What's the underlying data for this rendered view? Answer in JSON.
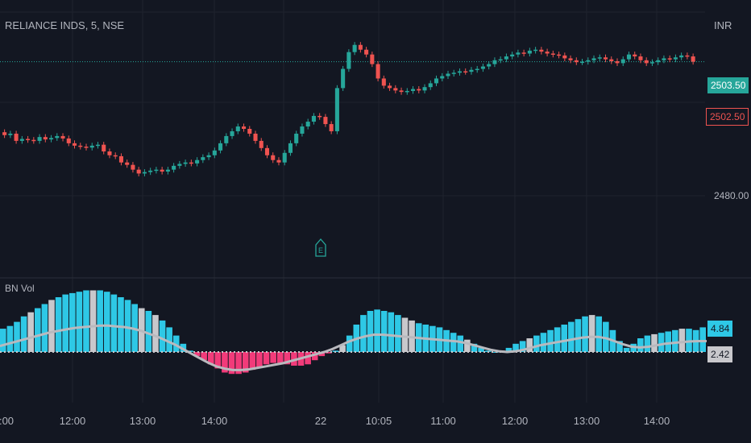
{
  "header": {
    "title": "RELIANCE INDS, 5, NSE",
    "currency": "INR"
  },
  "indicator": {
    "name": "BN Vol"
  },
  "colors": {
    "background": "#131722",
    "up": "#26a69a",
    "down": "#ef5350",
    "vol_up": "#2ec8e6",
    "vol_down": "#f23b7a",
    "vol_neutral": "#c8c8cc",
    "ma_line": "#b9b9be",
    "grid": "#1f232e"
  },
  "badges": {
    "last_price": {
      "text": "2503.50",
      "bg": "#26a69a",
      "fg": "#ffffff"
    },
    "bid_price": {
      "text": "2502.50",
      "bg": "#131722",
      "fg": "#ef5350",
      "border": "#ef5350"
    },
    "ind_value_1": {
      "text": "4.84",
      "bg": "#2ec8e6",
      "fg": "#131722"
    },
    "ind_value_2": {
      "text": "2.42",
      "bg": "#c8c8cc",
      "fg": "#131722"
    }
  },
  "earnings_marker": {
    "label": "E",
    "icon": "earnings-flag-icon"
  },
  "chart_data": {
    "type": "candlestick",
    "title": "RELIANCE INDS, 5, NSE",
    "price_axis": {
      "labels": [
        "2480.00"
      ],
      "range": [
        2466,
        2513
      ],
      "last_price": 2503.5
    },
    "time_axis": {
      "labels": [
        ":00",
        "12:00",
        "13:00",
        "14:00",
        "22",
        "10:05",
        "11:00",
        "12:00",
        "13:00",
        "14:00"
      ]
    },
    "price_path": [
      2488.8,
      2488.2,
      2488.5,
      2487,
      2487.4,
      2487.2,
      2487,
      2487.8,
      2487.3,
      2487.6,
      2488,
      2487.5,
      2486.5,
      2486,
      2485.8,
      2485.6,
      2486,
      2486.2,
      2484.8,
      2484,
      2483.8,
      2482.5,
      2482,
      2481,
      2480.2,
      2480.5,
      2480.8,
      2481,
      2480.6,
      2481,
      2481.8,
      2482.2,
      2482.5,
      2482.3,
      2483,
      2483.6,
      2484,
      2485,
      2486.5,
      2488,
      2489,
      2490,
      2489.5,
      2488.5,
      2487,
      2485.5,
      2484,
      2483,
      2482.5,
      2484.5,
      2486.5,
      2488.5,
      2490,
      2491,
      2492.2,
      2492,
      2490.5,
      2489,
      2498,
      2502,
      2505.5,
      2507,
      2506,
      2505,
      2503,
      2500,
      2498.5,
      2498,
      2497.5,
      2497.2,
      2497.4,
      2497.8,
      2497.5,
      2498.2,
      2499,
      2500,
      2500.5,
      2501,
      2501.2,
      2501.5,
      2501.4,
      2501.8,
      2502,
      2502.5,
      2503,
      2503.8,
      2504,
      2504.6,
      2505,
      2505.4,
      2505.2,
      2505.8,
      2506,
      2505.6,
      2505.2,
      2505,
      2504.8,
      2504.2,
      2503.8,
      2503.4,
      2503.5,
      2503.8,
      2504.2,
      2504.4,
      2504,
      2503.6,
      2503.2,
      2504,
      2505,
      2504.6,
      2503.8,
      2503.2,
      2503.4,
      2503.8,
      2504.2,
      2504,
      2504.4,
      2504.8,
      2504.6,
      2503.5
    ],
    "oscillator": {
      "zero_label": "2.42",
      "value_label": "4.84",
      "histogram": [
        1.7,
        1.9,
        2.2,
        2.6,
        2.9,
        3.2,
        3.5,
        3.8,
        4.0,
        4.2,
        4.3,
        4.4,
        4.5,
        4.5,
        4.5,
        4.4,
        4.2,
        4.0,
        3.8,
        3.5,
        3.2,
        3.0,
        2.7,
        2.3,
        1.8,
        1.2,
        0.6,
        0.1,
        -0.3,
        -0.6,
        -0.9,
        -1.2,
        -1.5,
        -1.6,
        -1.6,
        -1.5,
        -1.3,
        -1.1,
        -0.9,
        -0.8,
        -0.8,
        -0.9,
        -1.0,
        -1.0,
        -0.9,
        -0.6,
        -0.3,
        -0.1,
        0.1,
        0.5,
        1.2,
        2.0,
        2.7,
        3.0,
        3.1,
        3.0,
        2.9,
        2.7,
        2.5,
        2.3,
        2.1,
        2.0,
        1.9,
        1.8,
        1.6,
        1.4,
        1.2,
        0.9,
        0.6,
        0.3,
        0.1,
        0,
        0.1,
        0.3,
        0.6,
        0.8,
        1.0,
        1.2,
        1.4,
        1.6,
        1.8,
        2.0,
        2.2,
        2.4,
        2.6,
        2.7,
        2.6,
        2.2,
        1.6,
        0.8,
        0.3,
        0.6,
        1.0,
        1.2,
        1.3,
        1.4,
        1.5,
        1.6,
        1.7,
        1.7,
        1.6,
        1.8
      ],
      "ma": [
        0.4,
        0.55,
        0.7,
        0.85,
        1.0,
        1.15,
        1.3,
        1.4,
        1.5,
        1.6,
        1.65,
        1.7,
        1.75,
        1.75,
        1.7,
        1.65,
        1.55,
        1.4,
        1.2,
        1.0,
        0.75,
        0.5,
        0.2,
        -0.1,
        -0.4,
        -0.7,
        -0.95,
        -1.1,
        -1.2,
        -1.2,
        -1.15,
        -1.05,
        -0.95,
        -0.85,
        -0.75,
        -0.6,
        -0.45,
        -0.3,
        -0.15,
        0,
        0.2,
        0.45,
        0.7,
        0.9,
        1.05,
        1.15,
        1.15,
        1.1,
        1.05,
        1.0,
        0.95,
        0.9,
        0.85,
        0.8,
        0.75,
        0.7,
        0.6,
        0.45,
        0.3,
        0.15,
        0.05,
        0,
        0.05,
        0.15,
        0.3,
        0.45,
        0.55,
        0.65,
        0.75,
        0.85,
        0.95,
        1.0,
        1.0,
        0.9,
        0.7,
        0.5,
        0.35,
        0.3,
        0.35,
        0.45,
        0.55,
        0.6,
        0.65,
        0.7,
        0.72,
        0.72
      ]
    }
  }
}
